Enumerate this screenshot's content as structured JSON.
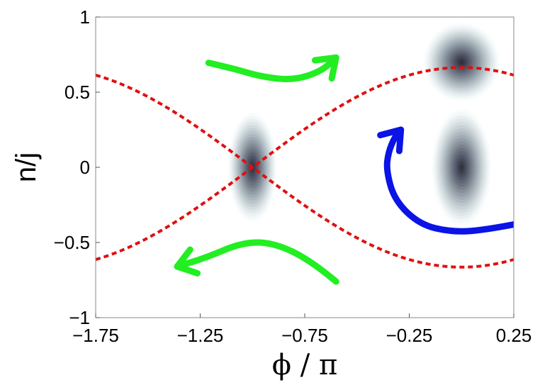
{
  "chart_data": {
    "type": "heatmap",
    "title": "",
    "xlabel": "ϕ / π",
    "ylabel": "n/j",
    "xlim": [
      -1.75,
      0.25
    ],
    "ylim": [
      -1,
      1
    ],
    "x_ticks": [
      {
        "value": -1.75,
        "label": "−1.75"
      },
      {
        "value": -1.25,
        "label": "−1.25"
      },
      {
        "value": -0.75,
        "label": "−0.75"
      },
      {
        "value": -0.25,
        "label": "−0.25"
      },
      {
        "value": 0.25,
        "label": "0.25"
      }
    ],
    "y_ticks": [
      {
        "value": 1,
        "label": "1"
      },
      {
        "value": 0.5,
        "label": "0.5"
      },
      {
        "value": 0,
        "label": "0"
      },
      {
        "value": -0.5,
        "label": "−0.5"
      },
      {
        "value": -1,
        "label": "−1"
      }
    ],
    "grid": false,
    "density_blobs": [
      {
        "x": -1.0,
        "y": 0.0,
        "sx": 0.045,
        "sy": 0.14,
        "peak": 1.0
      },
      {
        "x": 0.0,
        "y": 0.7,
        "sx": 0.07,
        "sy": 0.1,
        "peak": 1.0
      },
      {
        "x": 0.0,
        "y": 0.0,
        "sx": 0.055,
        "sy": 0.15,
        "peak": 0.95
      }
    ],
    "separatrix": {
      "color": "#e01010",
      "description_curves": [
        "upper",
        "lower"
      ],
      "amplitude": 0.664,
      "center": -1.0,
      "period": 2.0
    },
    "arrows": [
      {
        "name": "green-arrow-top",
        "color": "#22ee22",
        "points": [
          [
            -1.21,
            0.695
          ],
          [
            -1.1,
            0.66
          ],
          [
            -0.95,
            0.6
          ],
          [
            -0.8,
            0.58
          ],
          [
            -0.67,
            0.64
          ],
          [
            -0.6,
            0.73
          ]
        ],
        "head": "end"
      },
      {
        "name": "green-arrow-bottom",
        "color": "#22ee22",
        "points": [
          [
            -0.6,
            -0.76
          ],
          [
            -0.72,
            -0.62
          ],
          [
            -0.9,
            -0.5
          ],
          [
            -1.05,
            -0.5
          ],
          [
            -1.22,
            -0.6
          ],
          [
            -1.36,
            -0.66
          ]
        ],
        "head": "end"
      },
      {
        "name": "blue-arrow",
        "color": "#0a14e6",
        "points": [
          [
            0.25,
            -0.38
          ],
          [
            0.1,
            -0.42
          ],
          [
            -0.05,
            -0.43
          ],
          [
            -0.2,
            -0.38
          ],
          [
            -0.32,
            -0.22
          ],
          [
            -0.36,
            -0.02
          ],
          [
            -0.35,
            0.1
          ],
          [
            -0.32,
            0.2
          ],
          [
            -0.29,
            0.25
          ]
        ],
        "head": "end"
      }
    ]
  }
}
